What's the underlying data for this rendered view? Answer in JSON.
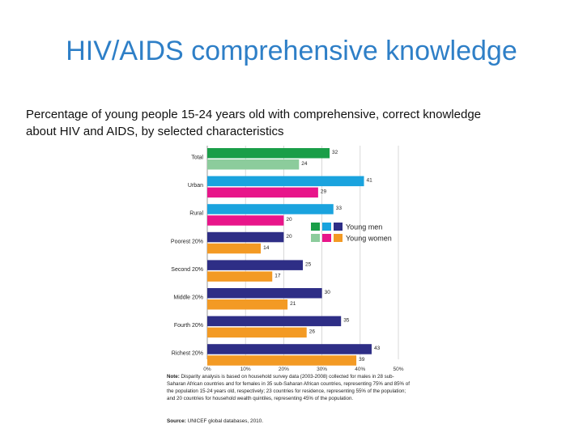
{
  "slide": {
    "title": "HIV/AIDS comprehensive knowledge",
    "subtitle_line1": "Percentage of young people 15-24 years old with comprehensive,  correct knowledge",
    "subtitle_line2": "about  HIV and AIDS, by selected characteristics"
  },
  "note": {
    "label": "Note:",
    "text": "Disparity analysis is based on household survey data (2003-2008) collected for males in 28 sub-Saharan African countries and for females in 35 sub-Saharan African countries, representing 75% and 85% of the population 15-24 years old, respectively; 23 countries for residence, representing 55% of the population; and 20 countries for household wealth quintiles, representing 45% of the population."
  },
  "source": {
    "label": "Source:",
    "text": "UNICEF global databases, 2010."
  },
  "colors": {
    "total_men": "#1a9e48",
    "total_women": "#8ccc9c",
    "residence_men": "#1aa3de",
    "residence_women": "#e8158a",
    "wealth_men": "#2e2e86",
    "wealth_women": "#f39a24",
    "grid": "#cfcfcf"
  },
  "chart_data": {
    "type": "bar",
    "orientation": "horizontal",
    "categories": [
      "Total",
      "Urban",
      "Rural",
      "Poorest 20%",
      "Second 20%",
      "Middle 20%",
      "Fourth 20%",
      "Richest 20%"
    ],
    "series": [
      {
        "name": "Young men",
        "values": [
          32,
          41,
          33,
          20,
          25,
          30,
          35,
          43
        ]
      },
      {
        "name": "Young women",
        "values": [
          24,
          29,
          20,
          14,
          17,
          21,
          26,
          39
        ]
      }
    ],
    "value_labels": {
      "men": [
        "32",
        "41",
        "33",
        "20",
        "25",
        "30",
        "35",
        "43"
      ],
      "women": [
        "24",
        "29",
        "20",
        "14",
        "17",
        "21",
        "26",
        "39"
      ]
    },
    "xlim": [
      0,
      50
    ],
    "xticks": [
      "0%",
      "10%",
      "20%",
      "30%",
      "40%",
      "50%"
    ],
    "grid": true,
    "legend_position": "right",
    "legend": [
      "Young men",
      "Young women"
    ]
  }
}
